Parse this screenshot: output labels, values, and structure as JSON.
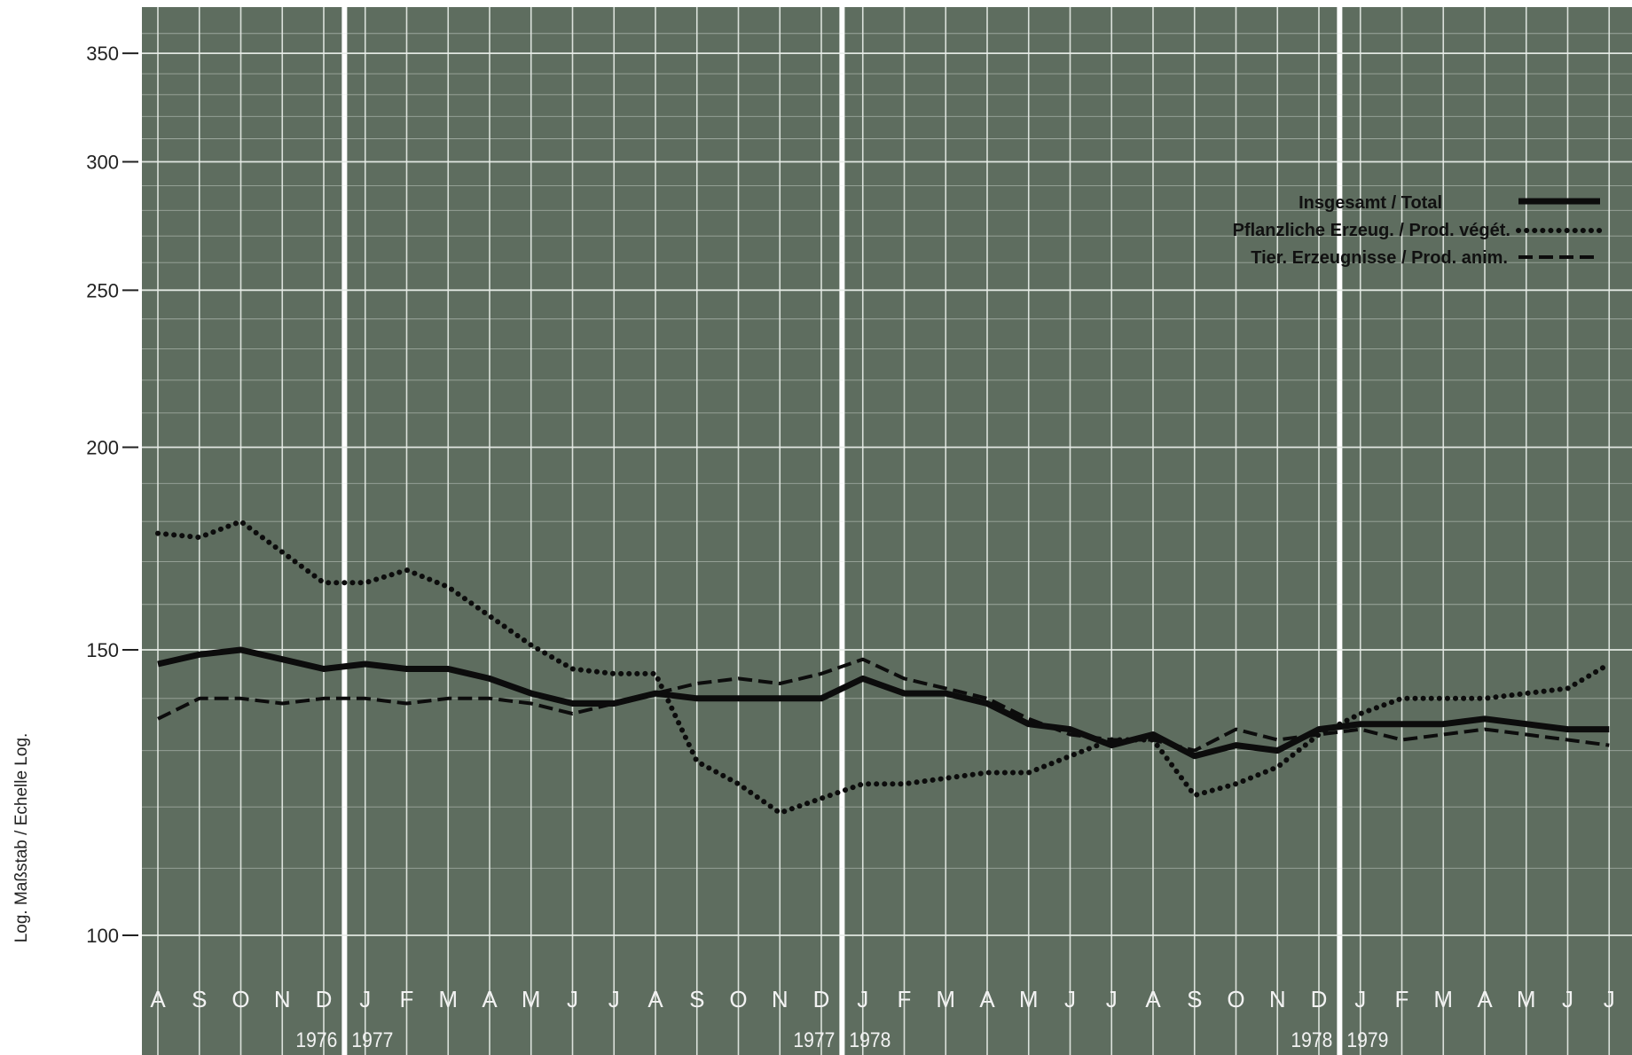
{
  "colors": {
    "panel": "#5e6d5f",
    "grid": "#e9eee9",
    "line": "#0c0c0c"
  },
  "chart_data": {
    "type": "line",
    "ylabel": "Log. Maßstab / Echelle Log.",
    "yscale": "log",
    "ylim": [
      92,
      370
    ],
    "yticks": [
      100,
      150,
      200,
      250,
      300,
      350
    ],
    "grid": true,
    "legend_position": "top-right",
    "month_labels": [
      "A",
      "S",
      "O",
      "N",
      "D",
      "J",
      "F",
      "M",
      "A",
      "M",
      "J",
      "J",
      "A",
      "S",
      "O",
      "N",
      "D",
      "J",
      "F",
      "M",
      "A",
      "M",
      "J",
      "J",
      "A",
      "S",
      "O",
      "N",
      "D",
      "J",
      "F",
      "M",
      "A",
      "M",
      "J",
      "J"
    ],
    "year_labels": [
      {
        "text": "1976",
        "after_month_index": 4,
        "side": "left"
      },
      {
        "text": "1977",
        "after_month_index": 4,
        "side": "right"
      },
      {
        "text": "1977",
        "after_month_index": 16,
        "side": "left"
      },
      {
        "text": "1978",
        "after_month_index": 16,
        "side": "right"
      },
      {
        "text": "1978",
        "after_month_index": 28,
        "side": "left"
      },
      {
        "text": "1979",
        "after_month_index": 28,
        "side": "right"
      }
    ],
    "x": [
      "1976-07",
      "1976-08",
      "1976-09",
      "1976-10",
      "1976-11",
      "1976-12",
      "1977-01",
      "1977-02",
      "1977-03",
      "1977-04",
      "1977-05",
      "1977-06",
      "1977-07",
      "1977-08",
      "1977-09",
      "1977-10",
      "1977-11",
      "1977-12",
      "1978-01",
      "1978-02",
      "1978-03",
      "1978-04",
      "1978-05",
      "1978-06",
      "1978-07",
      "1978-08",
      "1978-09",
      "1978-10",
      "1978-11",
      "1978-12",
      "1979-01",
      "1979-02",
      "1979-03",
      "1979-04",
      "1979-05",
      "1979-06"
    ],
    "series": [
      {
        "name": "Insgesamt / Total",
        "style": "solid",
        "values": [
          147,
          149,
          150,
          148,
          146,
          147,
          146,
          146,
          144,
          141,
          139,
          139,
          141,
          140,
          140,
          140,
          140,
          144,
          141,
          141,
          139,
          135,
          134,
          131,
          133,
          129,
          131,
          130,
          134,
          135,
          135,
          135,
          136,
          135,
          134,
          134
        ]
      },
      {
        "name": "Pflanzliche Erzeug. / Prod. végét.",
        "style": "dotted",
        "values": null,
        "points": [
          [
            0,
            177
          ],
          [
            1,
            176
          ],
          [
            2,
            180
          ],
          [
            4,
            165
          ],
          [
            5,
            165
          ],
          [
            6,
            168
          ],
          [
            7,
            164
          ],
          [
            9,
            151
          ],
          [
            10,
            146
          ],
          [
            11,
            145
          ],
          [
            12,
            145
          ],
          [
            13,
            128
          ],
          [
            14,
            124
          ],
          [
            15,
            119
          ],
          [
            17,
            124
          ],
          [
            18,
            124
          ],
          [
            19,
            125
          ],
          [
            20,
            126
          ],
          [
            21,
            126
          ],
          [
            22,
            129
          ],
          [
            23,
            132
          ],
          [
            24,
            132
          ],
          [
            25,
            122
          ],
          [
            26,
            124
          ],
          [
            27,
            127
          ],
          [
            28,
            133
          ],
          [
            29,
            137
          ],
          [
            30,
            140
          ],
          [
            31,
            140
          ],
          [
            32,
            140
          ],
          [
            33,
            141
          ],
          [
            34,
            142
          ],
          [
            35,
            147
          ]
        ]
      },
      {
        "name": "Tier. Erzeugnisse / Prod. anim.",
        "style": "dashed",
        "values": [
          136,
          140,
          140,
          139,
          140,
          140,
          139,
          140,
          140,
          139,
          137,
          139,
          141,
          143,
          144,
          143,
          145,
          148,
          144,
          142,
          140,
          136,
          133,
          132,
          132,
          130,
          134,
          132,
          133,
          134,
          132,
          133,
          134,
          133,
          132,
          131
        ]
      }
    ]
  }
}
